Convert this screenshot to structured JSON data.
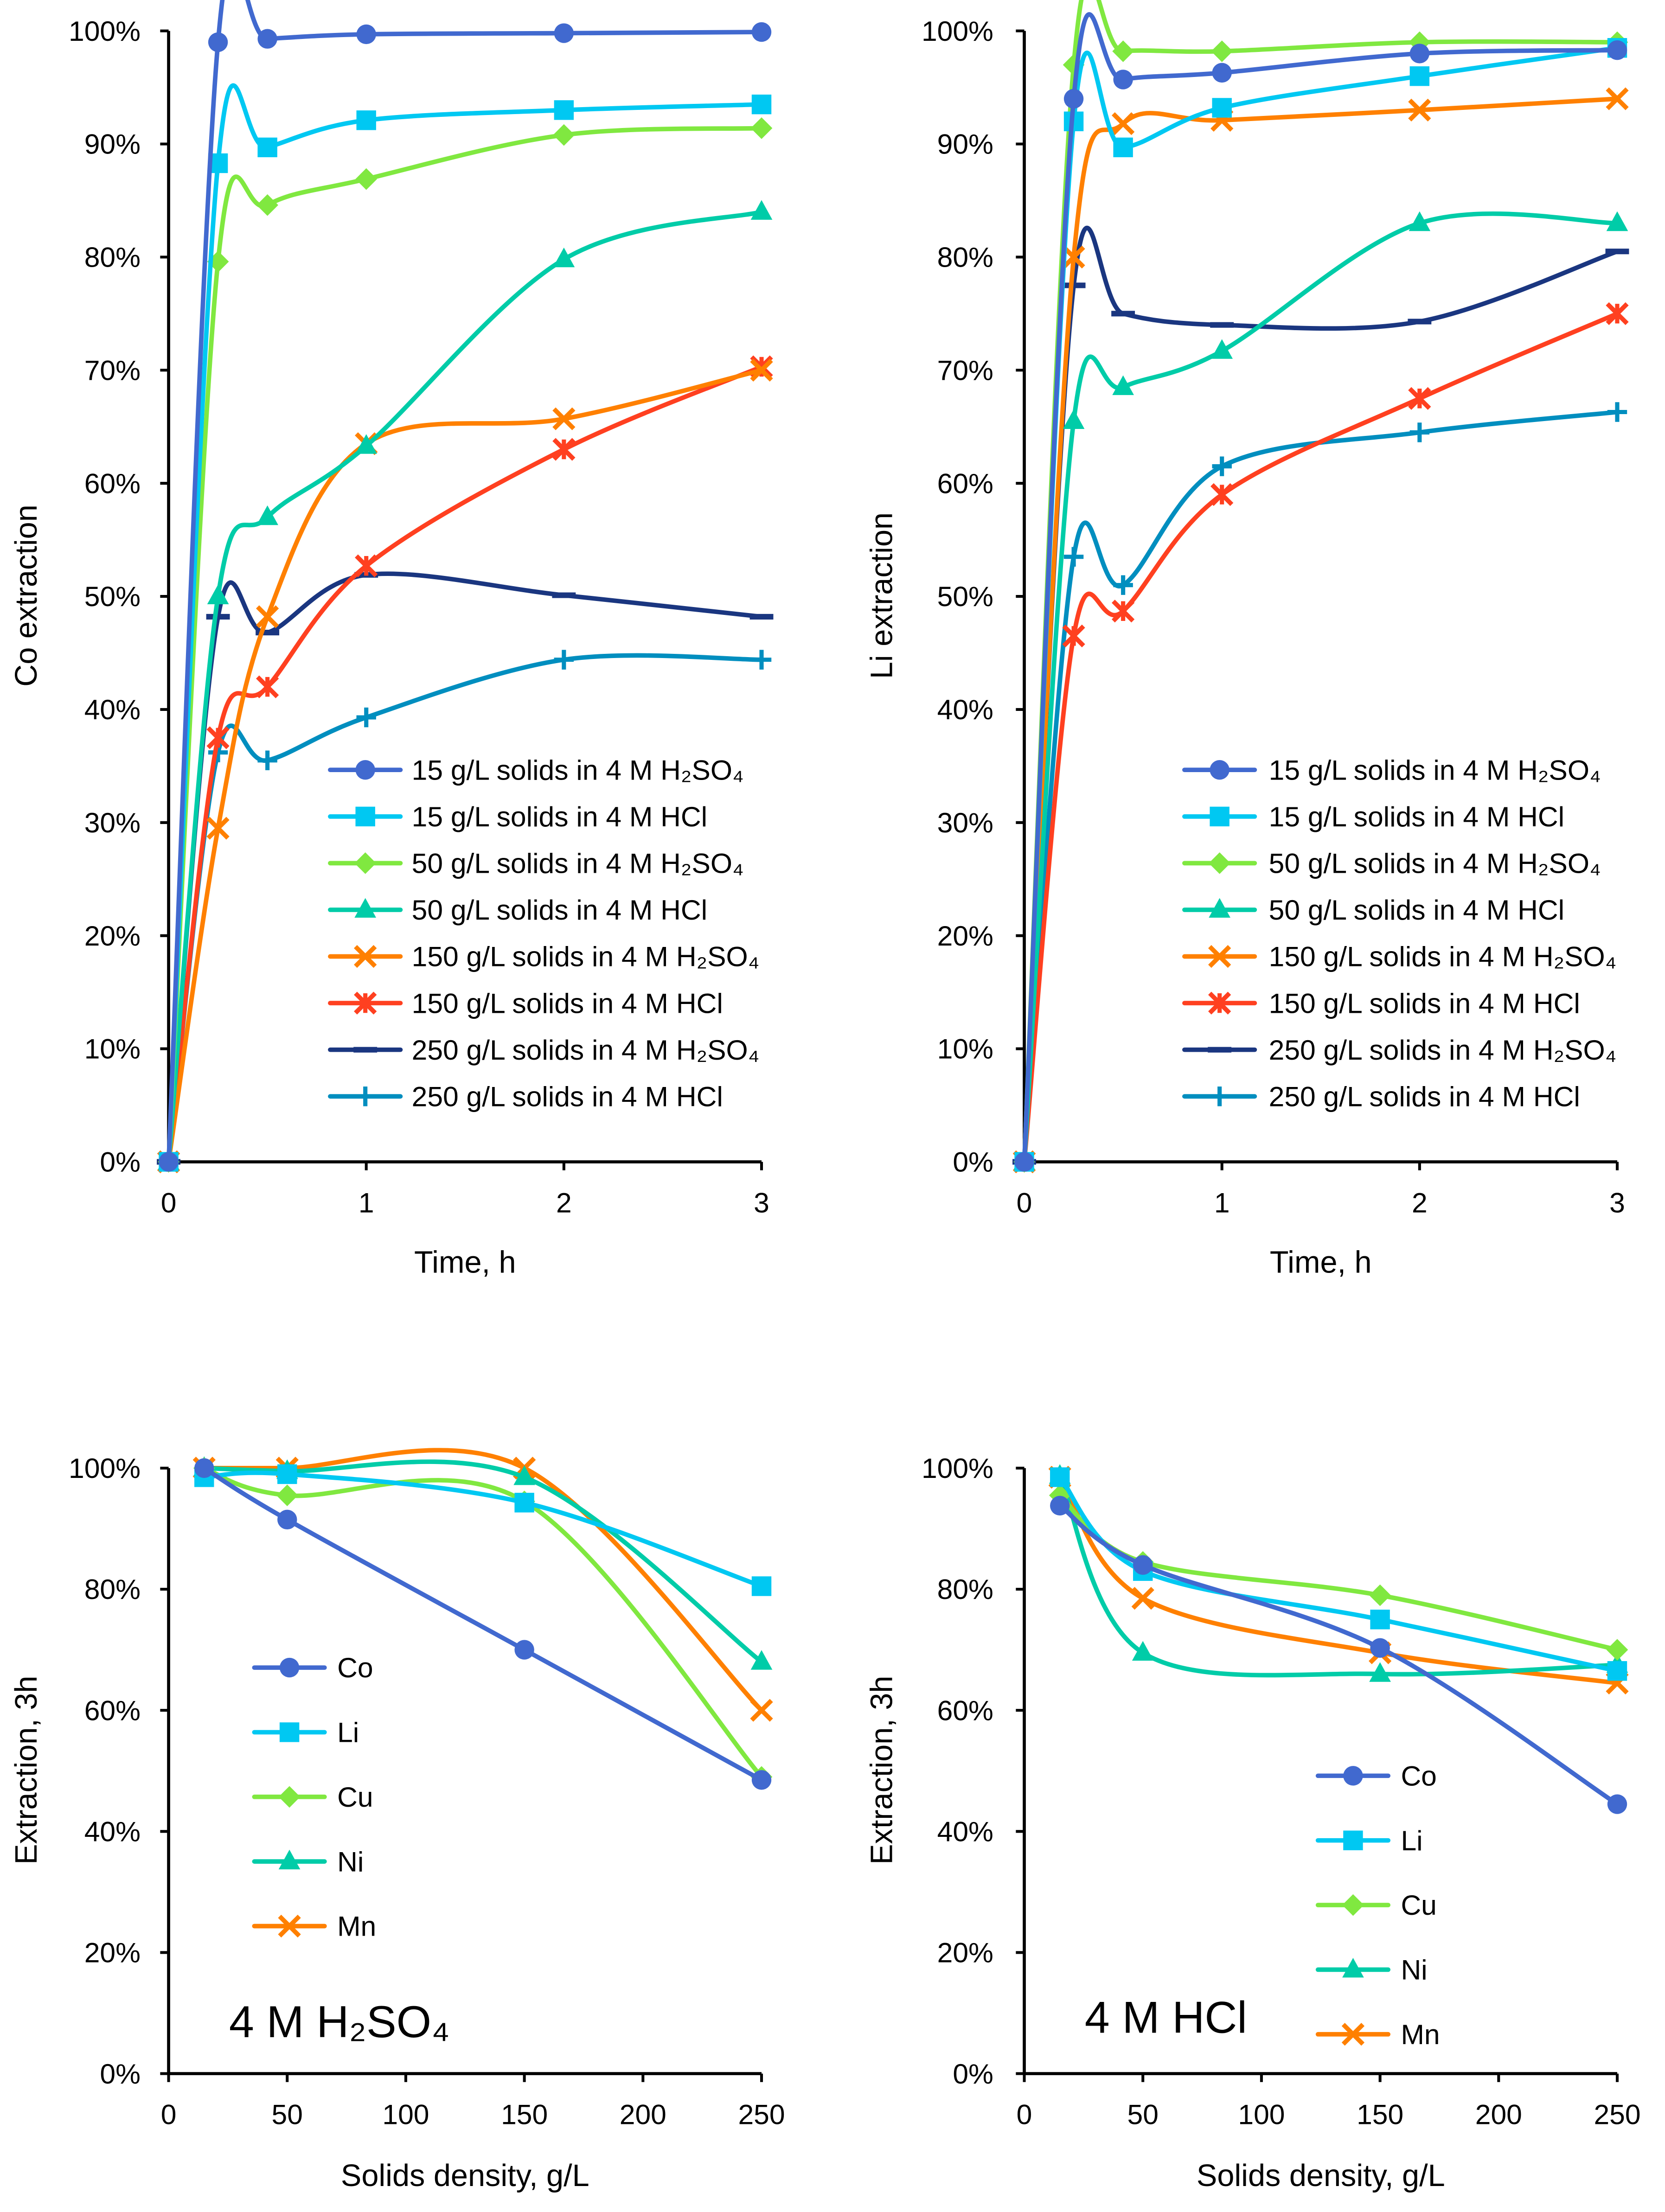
{
  "chart_data": [
    {
      "type": "line",
      "xlabel": "Time, h",
      "ylabel": "Co extraction",
      "xlim": [
        0,
        3
      ],
      "ylim": [
        0,
        100
      ],
      "xticks": [
        0,
        1,
        2,
        3
      ],
      "yticks": [
        0,
        10,
        20,
        30,
        40,
        50,
        60,
        70,
        80,
        90,
        100
      ],
      "y_format": "percent",
      "legend_position": "center-right",
      "x": [
        0,
        0.25,
        0.5,
        1,
        2,
        3
      ],
      "series": [
        {
          "name": "15 g/L solids in 4 M H₂SO₄",
          "color": "#4169cf",
          "marker": "circle",
          "values": [
            0,
            99.0,
            99.3,
            99.7,
            99.8,
            99.9
          ]
        },
        {
          "name": "15 g/L solids in 4 M HCl",
          "color": "#00c8f2",
          "marker": "square",
          "values": [
            0,
            88.3,
            89.7,
            92.1,
            93.0,
            93.5
          ]
        },
        {
          "name": "50 g/L solids in 4 M H₂SO₄",
          "color": "#80e840",
          "marker": "diamond",
          "values": [
            0,
            79.6,
            84.6,
            86.9,
            90.8,
            91.4
          ]
        },
        {
          "name": "50 g/L solids in 4 M HCl",
          "color": "#00cca8",
          "marker": "triangle",
          "values": [
            0,
            50.0,
            57.0,
            63.3,
            79.8,
            84.0
          ]
        },
        {
          "name": "150 g/L solids in 4 M H₂SO₄",
          "color": "#ff8000",
          "marker": "x",
          "values": [
            0,
            29.5,
            48.2,
            63.5,
            65.7,
            70.0
          ]
        },
        {
          "name": "150 g/L solids in 4 M HCl",
          "color": "#ff4020",
          "marker": "star",
          "values": [
            0,
            37.5,
            42.0,
            52.7,
            63.0,
            70.3
          ]
        },
        {
          "name": "250 g/L solids in 4 M H₂SO₄",
          "color": "#1a3680",
          "marker": "dash",
          "values": [
            0,
            48.2,
            46.8,
            51.9,
            50.1,
            48.2
          ]
        },
        {
          "name": "250 g/L solids in 4 M HCl",
          "color": "#008ebf",
          "marker": "plus",
          "values": [
            0,
            36.2,
            35.5,
            39.3,
            44.4,
            44.4
          ]
        }
      ]
    },
    {
      "type": "line",
      "xlabel": "Time, h",
      "ylabel": "Li extraction",
      "xlim": [
        0,
        3
      ],
      "ylim": [
        0,
        100
      ],
      "xticks": [
        0,
        1,
        2,
        3
      ],
      "yticks": [
        0,
        10,
        20,
        30,
        40,
        50,
        60,
        70,
        80,
        90,
        100
      ],
      "y_format": "percent",
      "legend_position": "center-right",
      "x": [
        0,
        0.25,
        0.5,
        1,
        2,
        3
      ],
      "series": [
        {
          "name": "15 g/L solids in 4 M H₂SO₄",
          "color": "#4169cf",
          "marker": "circle",
          "values": [
            0,
            94.0,
            95.7,
            96.3,
            98.0,
            98.3
          ]
        },
        {
          "name": "15 g/L solids in 4 M HCl",
          "color": "#00c8f2",
          "marker": "square",
          "values": [
            0,
            92.0,
            89.7,
            93.2,
            96.0,
            98.5
          ]
        },
        {
          "name": "50 g/L solids in 4 M H₂SO₄",
          "color": "#80e840",
          "marker": "diamond",
          "values": [
            0,
            97.0,
            98.2,
            98.2,
            99.0,
            99.0
          ]
        },
        {
          "name": "50 g/L solids in 4 M HCl",
          "color": "#00cca8",
          "marker": "triangle",
          "values": [
            0,
            65.5,
            68.5,
            71.7,
            83.0,
            83.0
          ]
        },
        {
          "name": "150 g/L solids in 4 M H₂SO₄",
          "color": "#ff8000",
          "marker": "x",
          "values": [
            0,
            80.0,
            91.8,
            92.1,
            93.0,
            94.0
          ]
        },
        {
          "name": "150 g/L solids in 4 M HCl",
          "color": "#ff4020",
          "marker": "star",
          "values": [
            0,
            46.5,
            48.7,
            59.0,
            67.5,
            75.0
          ]
        },
        {
          "name": "250 g/L solids in 4 M H₂SO₄",
          "color": "#1a3680",
          "marker": "dash",
          "values": [
            0,
            77.5,
            75.0,
            74.0,
            74.3,
            80.5
          ]
        },
        {
          "name": "250 g/L solids in 4 M HCl",
          "color": "#008ebf",
          "marker": "plus",
          "values": [
            0,
            53.5,
            51.0,
            61.5,
            64.5,
            66.3
          ]
        }
      ]
    },
    {
      "type": "line",
      "xlabel": "Solids density, g/L",
      "ylabel": "Extraction, 3h",
      "annotation": "4 M H₂SO₄",
      "xlim": [
        0,
        250
      ],
      "ylim": [
        0,
        100
      ],
      "xticks": [
        0,
        50,
        100,
        150,
        200,
        250
      ],
      "yticks": [
        0,
        20,
        40,
        60,
        80,
        100
      ],
      "y_format": "percent",
      "legend_position": "center-left",
      "x": [
        15,
        50,
        150,
        250
      ],
      "series": [
        {
          "name": "Co",
          "color": "#4169cf",
          "marker": "circle",
          "values": [
            100,
            91.5,
            70.0,
            48.5
          ]
        },
        {
          "name": "Li",
          "color": "#00c8f2",
          "marker": "square",
          "values": [
            98.5,
            99.0,
            94.3,
            80.5
          ]
        },
        {
          "name": "Cu",
          "color": "#80e840",
          "marker": "diamond",
          "values": [
            100,
            95.5,
            94.5,
            49.0
          ]
        },
        {
          "name": "Ni",
          "color": "#00cca8",
          "marker": "triangle",
          "values": [
            100,
            99.5,
            98.5,
            68.0
          ]
        },
        {
          "name": "Mn",
          "color": "#ff8000",
          "marker": "x",
          "values": [
            100,
            100,
            100,
            60.0
          ]
        }
      ]
    },
    {
      "type": "line",
      "xlabel": "Solids density, g/L",
      "ylabel": "Extraction, 3h",
      "annotation": "4 M HCl",
      "xlim": [
        0,
        250
      ],
      "ylim": [
        0,
        100
      ],
      "xticks": [
        0,
        50,
        100,
        150,
        200,
        250
      ],
      "yticks": [
        0,
        20,
        40,
        60,
        80,
        100
      ],
      "y_format": "percent",
      "legend_position": "bottom-right",
      "x": [
        15,
        50,
        150,
        250
      ],
      "series": [
        {
          "name": "Co",
          "color": "#4169cf",
          "marker": "circle",
          "values": [
            93.8,
            84.0,
            70.3,
            44.5
          ]
        },
        {
          "name": "Li",
          "color": "#00c8f2",
          "marker": "square",
          "values": [
            98.5,
            83.0,
            75.0,
            66.5
          ]
        },
        {
          "name": "Cu",
          "color": "#80e840",
          "marker": "diamond",
          "values": [
            95.5,
            84.5,
            79.0,
            70.0
          ]
        },
        {
          "name": "Ni",
          "color": "#00cca8",
          "marker": "triangle",
          "values": [
            98.7,
            69.5,
            66.0,
            67.5
          ]
        },
        {
          "name": "Mn",
          "color": "#ff8000",
          "marker": "x",
          "values": [
            98.5,
            78.5,
            69.5,
            64.5
          ]
        }
      ]
    }
  ]
}
